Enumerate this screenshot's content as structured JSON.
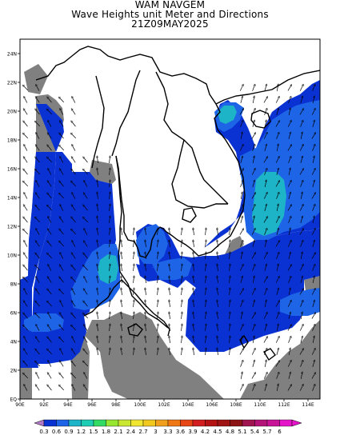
{
  "titles": {
    "line1": "WAM NAVGEM",
    "line2": "Wave Heights unit Meter and Directions",
    "line3": "21Z09MAY2025"
  },
  "map": {
    "region": "Gulf of Thailand / South China Sea / Andaman Sea",
    "lon_range": [
      90,
      115
    ],
    "lat_range": [
      0,
      25
    ],
    "lat_labels": [
      "EQ",
      "2N",
      "4N",
      "6N",
      "8N",
      "10N",
      "12N",
      "14N",
      "16N",
      "18N",
      "20N",
      "22N",
      "24N"
    ],
    "lon_labels": [
      "90E",
      "92E",
      "94E",
      "96E",
      "98E",
      "100E",
      "102E",
      "104E",
      "106E",
      "108E",
      "110E",
      "112E",
      "114E"
    ],
    "colors": {
      "land_mask": "#808080",
      "background": "#ffffff",
      "coast": "#000000",
      "band_0_3_0_6": "#0a32d2",
      "band_0_6_0_9": "#1e64e6",
      "band_0_9_1_2": "#1eb4c8"
    }
  },
  "colorbar": {
    "labels": [
      "0.3",
      "0.6",
      "0.9",
      "1.2",
      "1.5",
      "1.8",
      "2.1",
      "2.4",
      "2.7",
      "3",
      "3.3",
      "3.6",
      "3.9",
      "4.2",
      "4.5",
      "4.8",
      "5.1",
      "5.4",
      "5.7",
      "6"
    ],
    "colors": [
      "#0a32d2",
      "#1e64e6",
      "#1eb4c8",
      "#1ecdb4",
      "#32dc64",
      "#96e632",
      "#c8e632",
      "#f0e632",
      "#f0c81e",
      "#f0a01e",
      "#f07814",
      "#e64614",
      "#d21e1e",
      "#b41414",
      "#a01414",
      "#8c1414",
      "#a01450",
      "#b41478",
      "#c81496",
      "#e614c8"
    ]
  }
}
